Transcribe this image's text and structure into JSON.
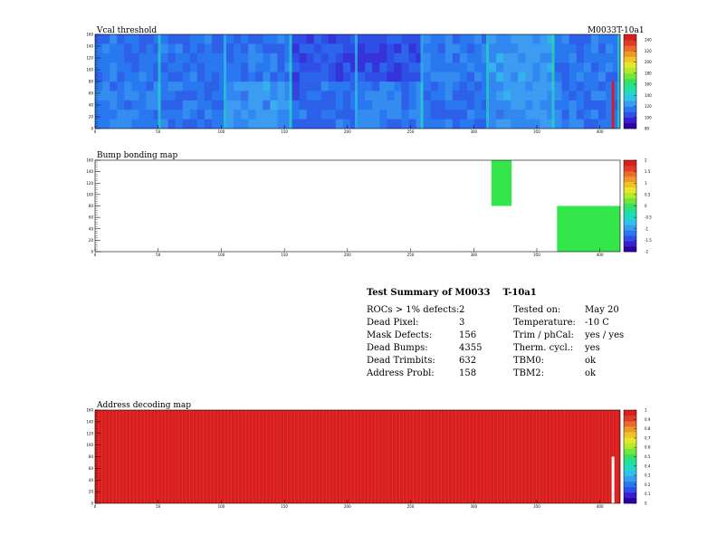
{
  "module_label": "M0033T-10a1",
  "chart_data": [
    {
      "type": "heatmap",
      "title": "Vcal threshold",
      "xlim": [
        0,
        416
      ],
      "ylim": [
        0,
        160
      ],
      "x_ticks": [
        0,
        50,
        100,
        150,
        200,
        250,
        300,
        350,
        400
      ],
      "y_ticks": [
        0,
        20,
        40,
        60,
        80,
        100,
        120,
        140,
        160
      ],
      "z_range": [
        80,
        250
      ],
      "z_ticks": [
        80,
        100,
        120,
        140,
        160,
        180,
        200,
        220,
        240
      ],
      "roc_grid": {
        "columns": 8,
        "rows": 2
      },
      "roc_levels": [
        [
          118,
          112,
          120,
          110,
          118,
          112,
          120,
          114
        ],
        [
          112,
          110,
          116,
          106,
          104,
          118,
          122,
          112
        ]
      ],
      "hot_column": {
        "x": 410,
        "y_range": [
          0,
          80
        ],
        "z": 250
      }
    },
    {
      "type": "heatmap",
      "title": "Bump bonding map",
      "xlim": [
        0,
        416
      ],
      "ylim": [
        0,
        160
      ],
      "x_ticks": [
        0,
        50,
        100,
        150,
        200,
        250,
        300,
        350,
        400
      ],
      "y_ticks": [
        0,
        20,
        40,
        60,
        80,
        100,
        120,
        140,
        160
      ],
      "z_range": [
        -2,
        2
      ],
      "z_ticks": [
        -2,
        -1.5,
        -1,
        -0.5,
        0,
        0.5,
        1,
        1.5,
        2
      ],
      "regions": [
        {
          "x_range": [
            314,
            330
          ],
          "y_range": [
            80,
            160
          ],
          "z": 0.8
        },
        {
          "x_range": [
            366,
            416
          ],
          "y_range": [
            0,
            80
          ],
          "z": 0.8
        }
      ]
    },
    {
      "type": "heatmap",
      "title": "Address decoding map",
      "xlim": [
        0,
        416
      ],
      "ylim": [
        0,
        160
      ],
      "x_ticks": [
        0,
        50,
        100,
        150,
        200,
        250,
        300,
        350,
        400
      ],
      "y_ticks": [
        0,
        20,
        40,
        60,
        80,
        100,
        120,
        140,
        160
      ],
      "z_range": [
        0,
        1
      ],
      "z_ticks": [
        0,
        0.1,
        0.2,
        0.3,
        0.4,
        0.5,
        0.6,
        0.7,
        0.8,
        0.9,
        1
      ],
      "fill_value": 1,
      "dead_column": {
        "x": 410,
        "y_range": [
          0,
          80
        ],
        "z": 0
      }
    }
  ],
  "summary": {
    "title_part1": "Test Summary of M0033",
    "title_part2": "T-10a1",
    "rows": [
      {
        "label": "ROCs > 1% defects:",
        "value": "2",
        "label2": "Tested on:",
        "value2": "May 20"
      },
      {
        "label": "Dead Pixel:",
        "value": "3",
        "label2": "Temperature:",
        "value2": "-10 C"
      },
      {
        "label": "Mask Defects:",
        "value": "156",
        "label2": "Trim / phCal:",
        "value2": "yes / yes"
      },
      {
        "label": "Dead Bumps:",
        "value": "4355",
        "label2": "Therm. cycl.:",
        "value2": "yes"
      },
      {
        "label": "Dead Trimbits:",
        "value": "632",
        "label2": "TBM0:",
        "value2": "ok"
      },
      {
        "label": "Address Probl:",
        "value": "158",
        "label2": "TBM2:",
        "value2": "ok"
      }
    ]
  }
}
